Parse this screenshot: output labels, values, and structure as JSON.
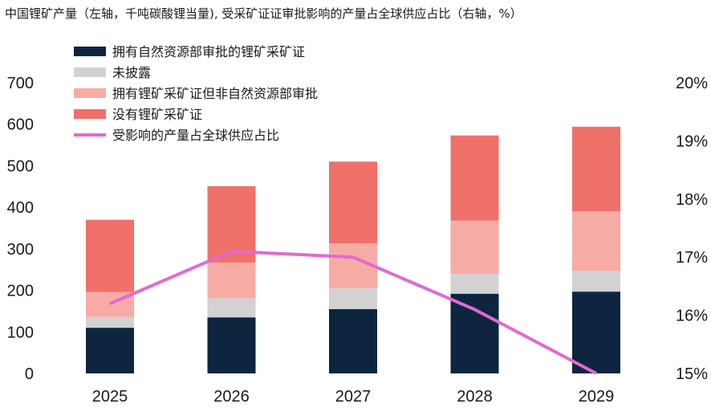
{
  "chart_data": {
    "type": "bar",
    "title": "中国锂矿产量（左轴，千吨碳酸锂当量), 受采矿证证审批影响的产量占全球供应占比（右轴，%）",
    "categories": [
      "2025",
      "2026",
      "2027",
      "2028",
      "2029"
    ],
    "stacked": true,
    "series": [
      {
        "name": "拥有自然资源部审批的锂矿采矿证",
        "type": "bar",
        "axis": "left",
        "color": "#0e2540",
        "values": [
          110,
          135,
          155,
          192,
          197
        ]
      },
      {
        "name": "未披露",
        "type": "bar",
        "axis": "left",
        "color": "#d2d2d2",
        "values": [
          26,
          46,
          50,
          48,
          50
        ]
      },
      {
        "name": "拥有锂矿采矿证但非自然资源部审批",
        "type": "bar",
        "axis": "left",
        "color": "#f7aba5",
        "values": [
          60,
          86,
          108,
          128,
          143
        ]
      },
      {
        "name": "没有锂矿采矿证",
        "type": "bar",
        "axis": "left",
        "color": "#f0706a",
        "values": [
          174,
          184,
          197,
          205,
          204
        ]
      },
      {
        "name": "受影响的产量占全球供应占比",
        "type": "line",
        "axis": "right",
        "color": "#e06bce",
        "values": [
          16.2,
          17.1,
          17.0,
          16.1,
          15.0
        ]
      }
    ],
    "left_axis": {
      "ylim": [
        0,
        700
      ],
      "ticks": [
        "0",
        "100",
        "200",
        "300",
        "400",
        "500",
        "600",
        "700"
      ]
    },
    "right_axis": {
      "ylim": [
        15,
        20
      ],
      "ticks": [
        "15%",
        "16%",
        "17%",
        "18%",
        "19%",
        "20%"
      ]
    },
    "legend_position": "top-left",
    "grid": false
  }
}
